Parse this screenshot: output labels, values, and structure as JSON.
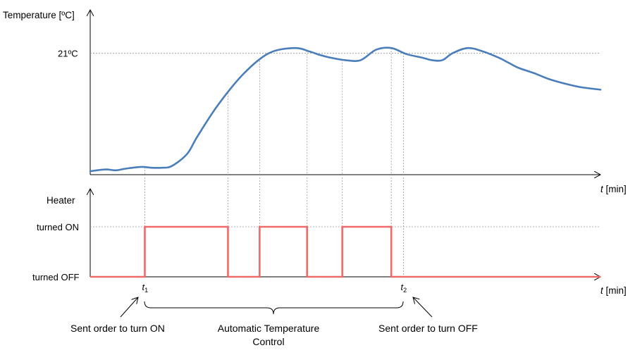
{
  "chart_data": [
    {
      "type": "line",
      "title": "",
      "ylabel": "Temperature [ºC]",
      "xlabel_var": "t",
      "xlabel_unit": " [min]",
      "y_reference_label": "21ºC",
      "y_reference_value": 21,
      "ylim": [
        14,
        23.5
      ],
      "xlim": [
        0,
        100
      ],
      "grid": false,
      "series": [
        {
          "color": "#4a7ebb",
          "x": [
            0,
            3,
            5,
            7,
            10,
            12,
            14,
            16,
            19,
            21,
            25,
            30,
            35,
            40,
            43,
            45,
            47,
            50,
            53,
            56,
            59,
            62,
            65,
            67,
            69,
            71,
            74,
            77,
            80,
            82,
            84,
            87,
            90,
            93,
            96,
            100
          ],
          "y": [
            14.2,
            14.3,
            14.25,
            14.35,
            14.45,
            14.4,
            14.4,
            14.5,
            15.2,
            16.2,
            18.0,
            19.8,
            21.0,
            21.3,
            21.1,
            20.9,
            20.75,
            20.6,
            20.6,
            21.2,
            21.3,
            20.95,
            20.75,
            20.6,
            20.6,
            21.0,
            21.3,
            21.1,
            20.75,
            20.45,
            20.15,
            19.85,
            19.5,
            19.25,
            19.05,
            18.9
          ]
        }
      ]
    },
    {
      "type": "line",
      "title": "",
      "ylabel": "Heater",
      "xlabel_var": "t",
      "xlabel_unit": " [min]",
      "categories": [
        "turned OFF",
        "turned ON"
      ],
      "xlim": [
        0,
        100
      ],
      "series": [
        {
          "color": "#f06a6a",
          "step": true,
          "x": [
            0,
            10.7,
            10.7,
            27,
            27,
            33.2,
            33.2,
            42.5,
            42.5,
            49.4,
            49.4,
            59,
            59,
            100
          ],
          "y": [
            0,
            0,
            1,
            1,
            0,
            0,
            1,
            1,
            0,
            0,
            1,
            1,
            0,
            0
          ]
        }
      ],
      "markers": [
        {
          "var": "t",
          "sub": "1",
          "x": 10.7
        },
        {
          "var": "t",
          "sub": "2",
          "x": 61.4
        }
      ]
    }
  ],
  "annotations": {
    "turn_on": "Sent order to turn ON",
    "auto_line1": "Automatic Temperature",
    "auto_line2": "Control",
    "turn_off": "Sent order to turn OFF"
  }
}
